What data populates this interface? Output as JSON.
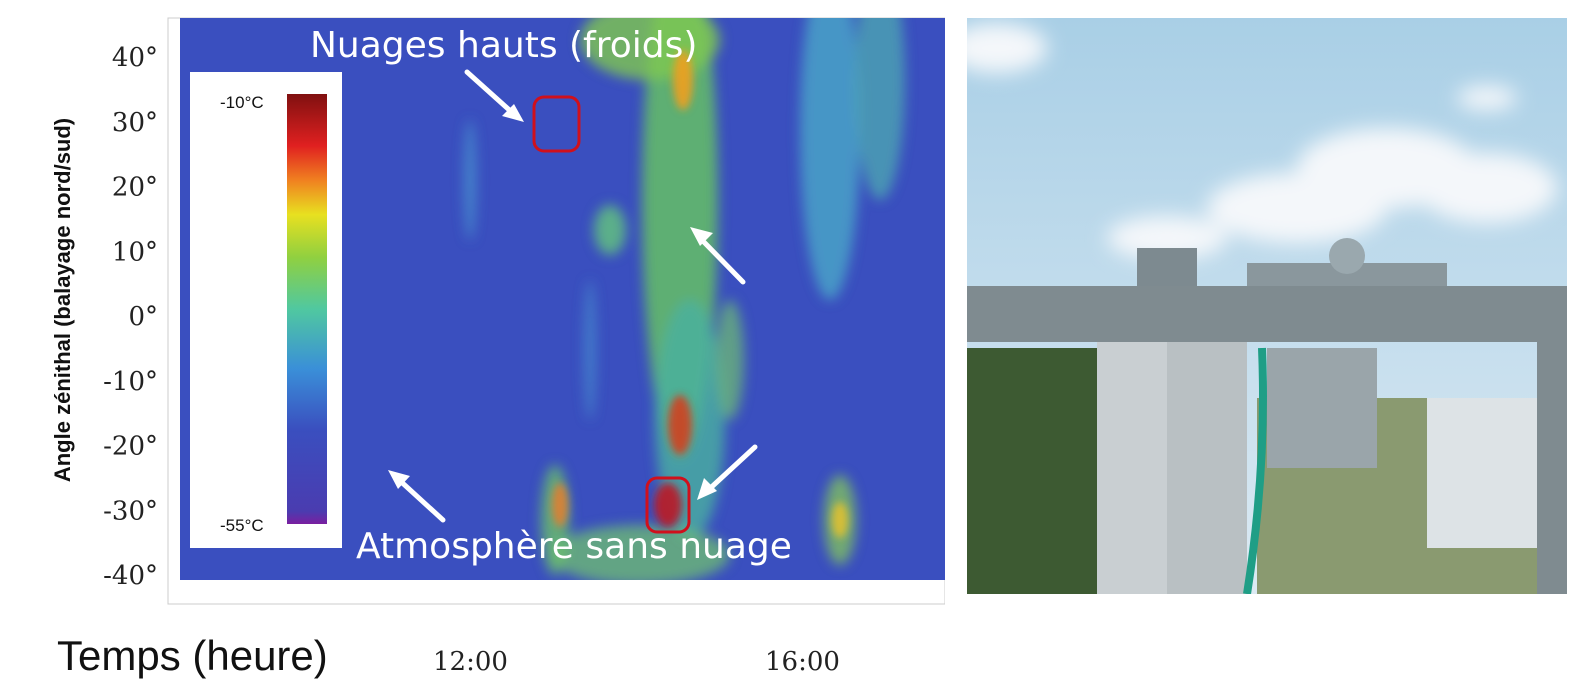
{
  "chart_data": {
    "type": "heatmap",
    "title": "",
    "xlabel": "Temps (heure)",
    "ylabel": "Angle zénithal (balayage nord/sud)",
    "x_ticks": [
      "12:00",
      "16:00"
    ],
    "y_ticks": [
      "40°",
      "30°",
      "20°",
      "10°",
      "0°",
      "-10°",
      "-20°",
      "-30°",
      "-40°"
    ],
    "ylim": [
      -40,
      40
    ],
    "colorbar": {
      "max_label": "-10°C",
      "min_label": "-55°C",
      "colormap": "jet"
    },
    "annotations": [
      {
        "text": "Nuages hauts (froids)"
      },
      {
        "text": "Atmosphère sans nuage"
      }
    ]
  },
  "colors": {
    "clear_sky": "#3a4fbf",
    "cloud_mid": "#64c064",
    "cloud_warm": "#b5202a",
    "highlight_box": "#d0101c",
    "arrow": "#ffffff"
  },
  "photo": {
    "icon": "rooftop-infrared-radiometer-photo",
    "sky_color": "#b8d6ea",
    "structure_color": "#8a9599"
  }
}
